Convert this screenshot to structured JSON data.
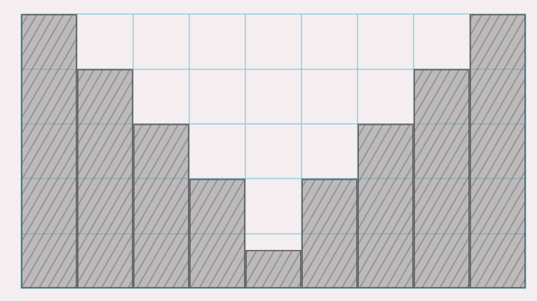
{
  "chart_data": {
    "type": "bar",
    "categories": [
      null,
      null,
      null,
      null,
      null,
      null,
      null,
      null,
      null
    ],
    "values": [
      5,
      4,
      3,
      2,
      0.7,
      2,
      3,
      4,
      5
    ],
    "color": "#8f8f8f",
    "ylim": [
      0,
      5
    ],
    "yticks": [
      0,
      1,
      2,
      3,
      4,
      5
    ],
    "grid": true,
    "tick_labels": false
  }
}
